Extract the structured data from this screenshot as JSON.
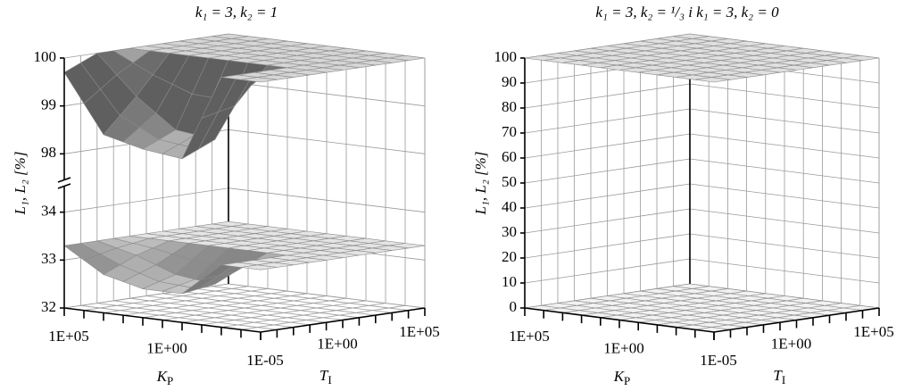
{
  "chart_data": [
    {
      "type": "surface3d",
      "title": "k₁ = 3, k₂ = 1",
      "zlabel": "L₁, L₂  [%]",
      "xlabel": {
        "main": "K",
        "sub": "P"
      },
      "ylabel": {
        "main": "T",
        "sub": "I"
      },
      "zlim": [
        32,
        100
      ],
      "z_break": [
        34.4,
        97.6
      ],
      "zticks": [
        32,
        33,
        34,
        98,
        99,
        100
      ],
      "xlim": [
        1e-05,
        100000
      ],
      "ylim": [
        1e-05,
        100000
      ],
      "log": true,
      "xticks": [
        {
          "value": 100000,
          "label": "1E+05"
        },
        {
          "value": 1,
          "label": "1E+00"
        },
        {
          "value": 1e-05,
          "label": "1E-05"
        }
      ],
      "yticks": [
        {
          "value": 1,
          "label": "1E+00"
        },
        {
          "value": 100000,
          "label": "1E+05"
        }
      ],
      "minor_ticks": [
        1e-05,
        0.0001,
        0.001,
        0.01,
        0.1,
        1,
        10,
        100,
        1000,
        10000,
        100000
      ],
      "kp_grid": [
        100000,
        1000,
        10,
        0.1,
        0.001,
        1e-05
      ],
      "ti_grid": [
        1e-05,
        0.001,
        0.1,
        10,
        1000,
        100000
      ],
      "surfaces": [
        {
          "color": "#e4e4e4",
          "z": [
            [
              33.3,
              33.3,
              33.3,
              33.3,
              33.3,
              33.3
            ],
            [
              32.8,
              33.1,
              33.3,
              33.3,
              33.3,
              33.3
            ],
            [
              32.6,
              32.8,
              33.3,
              33.3,
              33.3,
              33.3
            ],
            [
              32.6,
              32.7,
              33.3,
              33.3,
              33.3,
              33.3
            ],
            [
              33.3,
              33.3,
              33.3,
              33.3,
              33.3,
              33.3
            ],
            [
              33.3,
              33.3,
              33.3,
              33.3,
              33.3,
              33.3
            ]
          ]
        },
        {
          "color": "#d6d6d6",
          "z": [
            [
              99.7,
              100,
              100,
              100,
              100,
              100
            ],
            [
              98.5,
              99.2,
              100,
              100,
              100,
              100
            ],
            [
              98.3,
              98.6,
              100,
              100,
              100,
              100
            ],
            [
              98.2,
              98.5,
              100,
              100,
              100,
              100
            ],
            [
              100,
              100,
              100,
              100,
              100,
              100
            ],
            [
              100,
              100,
              100,
              100,
              100,
              100
            ]
          ]
        }
      ]
    },
    {
      "type": "surface3d",
      "title": "k₁ = 3, k₂ = ¹/₃ i k₁ = 3, k₂ = 0",
      "zlabel": "L₁, L₂  [%]",
      "xlabel": {
        "main": "K",
        "sub": "P"
      },
      "ylabel": {
        "main": "T",
        "sub": "I"
      },
      "zlim": [
        0,
        100
      ],
      "zticks": [
        0,
        10,
        20,
        30,
        40,
        50,
        60,
        70,
        80,
        90,
        100
      ],
      "xlim": [
        1e-05,
        100000
      ],
      "ylim": [
        1e-05,
        100000
      ],
      "log": true,
      "xticks": [
        {
          "value": 100000,
          "label": "1E+05"
        },
        {
          "value": 1,
          "label": "1E+00"
        },
        {
          "value": 1e-05,
          "label": "1E-05"
        }
      ],
      "yticks": [
        {
          "value": 1,
          "label": "1E+00"
        },
        {
          "value": 100000,
          "label": "1E+05"
        }
      ],
      "minor_ticks": [
        1e-05,
        0.0001,
        0.001,
        0.01,
        0.1,
        1,
        10,
        100,
        1000,
        10000,
        100000
      ],
      "kp_grid": [
        100000,
        1e-05
      ],
      "ti_grid": [
        1e-05,
        100000
      ],
      "surfaces": [
        {
          "color": "#f2f2f2",
          "z": [
            [
              0,
              0
            ],
            [
              0,
              0
            ]
          ]
        },
        {
          "color": "#e0e0e0",
          "z": [
            [
              100,
              100
            ],
            [
              100,
              100
            ]
          ]
        }
      ]
    }
  ]
}
